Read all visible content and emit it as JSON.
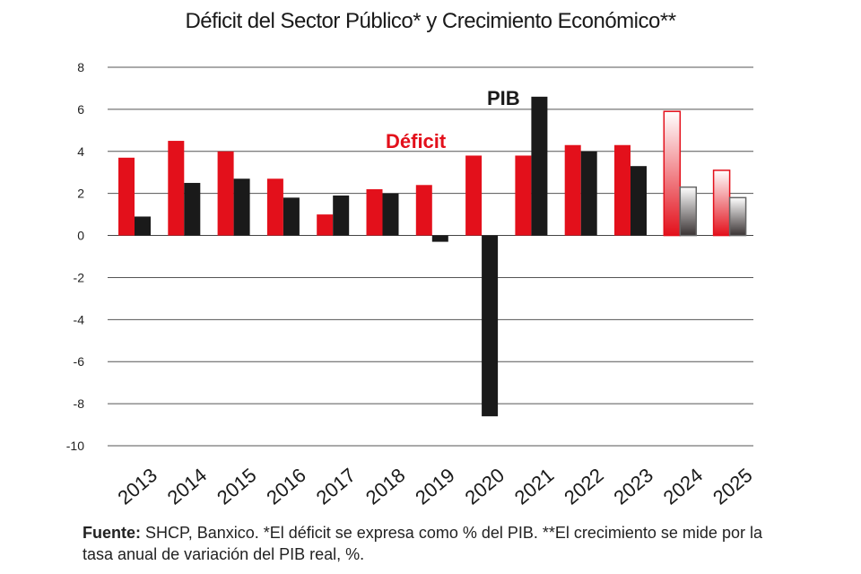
{
  "chart_data": {
    "type": "bar",
    "title": "Déficit del Sector Público* y Crecimiento Económico**",
    "categories": [
      "2013",
      "2014",
      "2015",
      "2016",
      "2017",
      "2018",
      "2019",
      "2020",
      "2021",
      "2022",
      "2023",
      "2024",
      "2025"
    ],
    "series": [
      {
        "name": "Déficit",
        "color": "#e3101b",
        "values": [
          3.7,
          4.5,
          4.0,
          2.7,
          1.0,
          2.2,
          2.4,
          3.8,
          3.8,
          4.3,
          4.3,
          5.9,
          3.1
        ]
      },
      {
        "name": "PIB",
        "color": "#1a1a1a",
        "values": [
          0.9,
          2.5,
          2.7,
          1.8,
          1.9,
          2.0,
          -0.3,
          -8.6,
          6.6,
          4.0,
          3.3,
          2.3,
          1.8
        ]
      }
    ],
    "projected_categories": [
      "2024",
      "2025"
    ],
    "ylim": [
      -10,
      8
    ],
    "yticks": [
      "8",
      "6",
      "4",
      "2",
      "0",
      "-2",
      "-4",
      "-6",
      "-8",
      "-10"
    ],
    "grid": true,
    "xlabel": "",
    "ylabel": ""
  },
  "source": {
    "label": "Fuente:",
    "text": " SHCP, Banxico. *El déficit se expresa como % del PIB. **El crecimiento se mide por la tasa anual de variación del PIB real, %."
  }
}
